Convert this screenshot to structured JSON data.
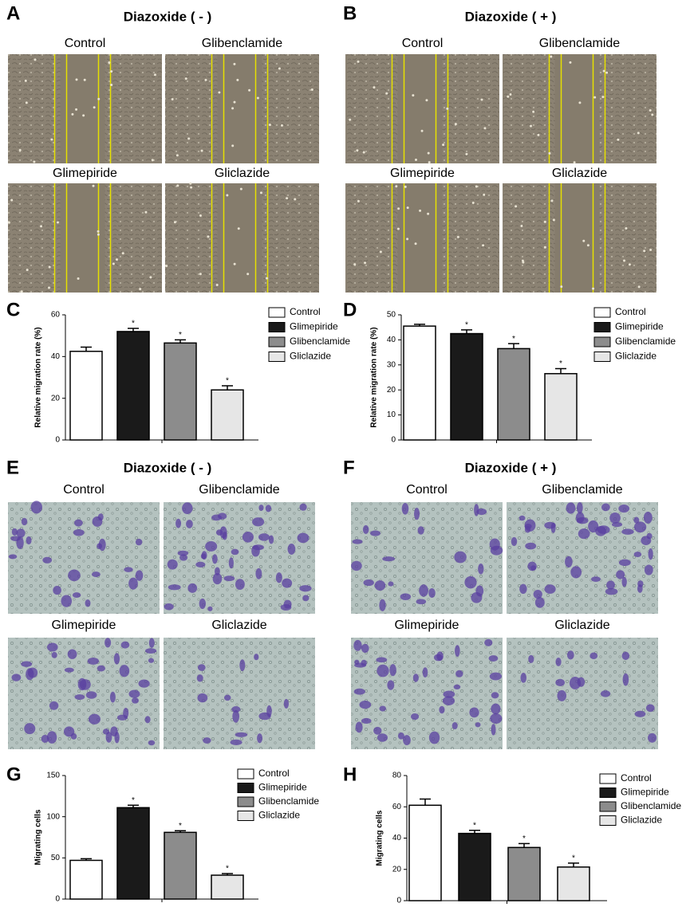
{
  "figure": {
    "letters": [
      "A",
      "B",
      "C",
      "D",
      "E",
      "F",
      "G",
      "H"
    ],
    "headings": [
      "Diazoxide ( - )",
      "Diazoxide ( + )",
      "Diazoxide ( - )",
      "Diazoxide ( + )"
    ],
    "image_labels": [
      [
        "Control",
        "Glibenclamide",
        "Glimepiride",
        "Gliclazide"
      ],
      [
        "Control",
        "Glibenclamide",
        "Glimepiride",
        "Gliclazide"
      ],
      [
        "Control",
        "Glibenclamide",
        "Glimepiride",
        "Gliclazide"
      ],
      [
        "Control",
        "Glibenclamide",
        "Glimepiride",
        "Gliclazide"
      ]
    ]
  },
  "chart_data": [
    {
      "type": "bar",
      "y_label": "Relative migration rate (%)",
      "ylim": [
        0,
        60
      ],
      "yticks": [
        0,
        20,
        40,
        60
      ],
      "series": [
        {
          "name": "Control",
          "color": "#ffffff",
          "values": [
            42.5
          ],
          "errors": [
            2
          ],
          "marker": null
        },
        {
          "name": "Glimepiride",
          "color": "#1a1a1a",
          "values": [
            52
          ],
          "errors": [
            1.5
          ],
          "marker": "*"
        },
        {
          "name": "Glibenclamide",
          "color": "#8c8c8c",
          "values": [
            46.5
          ],
          "errors": [
            1.5
          ],
          "marker": "*"
        },
        {
          "name": "Gliclazide",
          "color": "#e6e6e6",
          "values": [
            24
          ],
          "errors": [
            2
          ],
          "marker": "*"
        }
      ]
    },
    {
      "type": "bar",
      "y_label": "Relative migration rate (%)",
      "ylim": [
        0,
        50
      ],
      "yticks": [
        0,
        10,
        20,
        30,
        40,
        50
      ],
      "series": [
        {
          "name": "Control",
          "color": "#ffffff",
          "values": [
            45.5
          ],
          "errors": [
            0.7
          ],
          "marker": null
        },
        {
          "name": "Glimepiride",
          "color": "#1a1a1a",
          "values": [
            42.5
          ],
          "errors": [
            1.5
          ],
          "marker": "*"
        },
        {
          "name": "Glibenclamide",
          "color": "#8c8c8c",
          "values": [
            36.5
          ],
          "errors": [
            2
          ],
          "marker": "*"
        },
        {
          "name": "Gliclazide",
          "color": "#e6e6e6",
          "values": [
            26.5
          ],
          "errors": [
            2
          ],
          "marker": "*"
        }
      ]
    },
    {
      "type": "bar",
      "y_label": "Migrating cells",
      "ylim": [
        0,
        150
      ],
      "yticks": [
        0,
        50,
        100,
        150
      ],
      "series": [
        {
          "name": "Control",
          "color": "#ffffff",
          "values": [
            47
          ],
          "errors": [
            2
          ],
          "marker": null
        },
        {
          "name": "Glimepiride",
          "color": "#1a1a1a",
          "values": [
            111
          ],
          "errors": [
            3
          ],
          "marker": "*"
        },
        {
          "name": "Glibenclamide",
          "color": "#8c8c8c",
          "values": [
            81
          ],
          "errors": [
            2
          ],
          "marker": "*"
        },
        {
          "name": "Gliclazide",
          "color": "#e6e6e6",
          "values": [
            29
          ],
          "errors": [
            2
          ],
          "marker": "*"
        }
      ]
    },
    {
      "type": "bar",
      "y_label": "Migrating cells",
      "ylim": [
        0,
        80
      ],
      "yticks": [
        0,
        20,
        40,
        60,
        80
      ],
      "series": [
        {
          "name": "Control",
          "color": "#ffffff",
          "values": [
            61
          ],
          "errors": [
            4
          ],
          "marker": null
        },
        {
          "name": "Glimepiride",
          "color": "#1a1a1a",
          "values": [
            43
          ],
          "errors": [
            2
          ],
          "marker": "*"
        },
        {
          "name": "Glibenclamide",
          "color": "#8c8c8c",
          "values": [
            34
          ],
          "errors": [
            2.5
          ],
          "marker": "*"
        },
        {
          "name": "Gliclazide",
          "color": "#e6e6e6",
          "values": [
            21.5
          ],
          "errors": [
            2.5
          ],
          "marker": "*"
        }
      ]
    }
  ]
}
